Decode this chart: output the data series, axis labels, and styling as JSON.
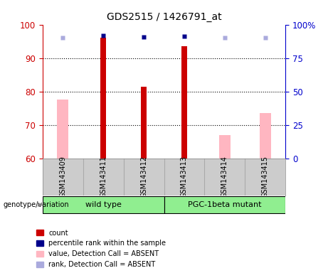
{
  "title": "GDS2515 / 1426791_at",
  "samples": [
    "GSM143409",
    "GSM143411",
    "GSM143412",
    "GSM143413",
    "GSM143414",
    "GSM143415"
  ],
  "ylim_left": [
    60,
    100
  ],
  "ylim_right": [
    0,
    100
  ],
  "yticks_left": [
    60,
    70,
    80,
    90,
    100
  ],
  "ytick_labels_right": [
    "0",
    "25",
    "50",
    "75",
    "100%"
  ],
  "red_bars": [
    null,
    96,
    81.5,
    93.5,
    null,
    null
  ],
  "blue_dots": [
    null,
    92,
    90.5,
    91.5,
    null,
    null
  ],
  "pink_bars": [
    77.5,
    null,
    null,
    null,
    67,
    73.5
  ],
  "lightblue_dots": [
    90,
    null,
    null,
    null,
    90,
    90
  ],
  "left_axis_color": "#CC0000",
  "right_axis_color": "#0000CC",
  "legend_items": [
    {
      "color": "#CC0000",
      "label": "count"
    },
    {
      "color": "#00008B",
      "label": "percentile rank within the sample"
    },
    {
      "color": "#FFB6C1",
      "label": "value, Detection Call = ABSENT"
    },
    {
      "color": "#AAAADD",
      "label": "rank, Detection Call = ABSENT"
    }
  ],
  "group1_label": "wild type",
  "group2_label": "PGC-1beta mutant",
  "group_color": "#90EE90",
  "genotype_label": "genotype/variation"
}
